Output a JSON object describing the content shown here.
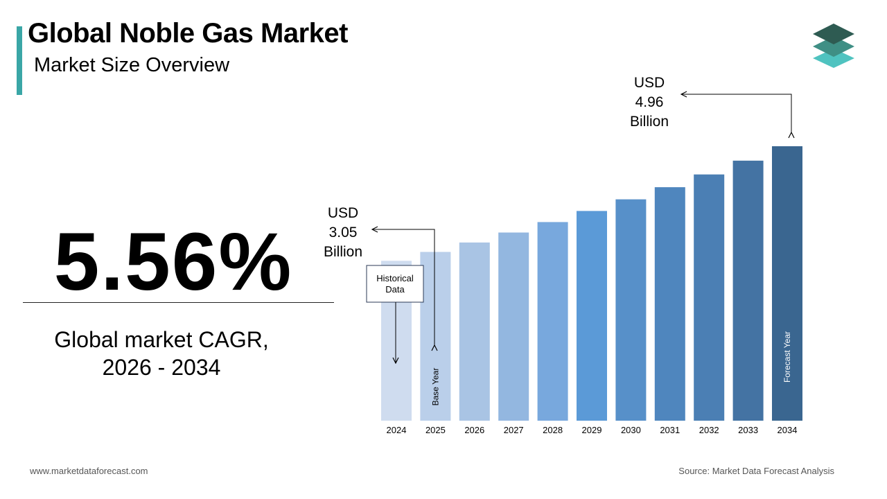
{
  "header": {
    "title": "Global Noble Gas Market",
    "subtitle": "Market Size Overview"
  },
  "colors": {
    "accent": "#3aa6a6",
    "logo_top": "#2e5b52",
    "logo_mid": "#3f8f85",
    "logo_bottom": "#4fc3c0"
  },
  "logo": {
    "icon": "layers-icon"
  },
  "cagr": {
    "value": "5.56%",
    "label_line1": "Global market CAGR,",
    "label_line2": "2026 - 2034"
  },
  "callouts": {
    "start": {
      "line1": "USD",
      "line2": "3.05",
      "line3": "Billion"
    },
    "end": {
      "line1": "USD",
      "line2": "4.96",
      "line3": "Billion"
    },
    "historical_line1": "Historical",
    "historical_line2": "Data"
  },
  "chart_data": {
    "type": "bar",
    "categories": [
      "2024",
      "2025",
      "2026",
      "2027",
      "2028",
      "2029",
      "2030",
      "2031",
      "2032",
      "2033",
      "2034"
    ],
    "values": [
      2.89,
      3.05,
      3.22,
      3.4,
      3.59,
      3.79,
      4.0,
      4.22,
      4.45,
      4.7,
      4.96
    ],
    "bar_colors": [
      "#cfdcef",
      "#bacfea",
      "#a9c4e4",
      "#93b7e0",
      "#78a8dd",
      "#5b9ad7",
      "#5790c9",
      "#4f86be",
      "#4b7fb4",
      "#4473a3",
      "#3a6690"
    ],
    "bar_annotations": {
      "2025": "Base Year",
      "2034": "Forecast Year"
    },
    "units": "USD Billion"
  },
  "footer": {
    "website": "www.marketdataforecast.com",
    "source": "Source: Market Data Forecast Analysis"
  }
}
